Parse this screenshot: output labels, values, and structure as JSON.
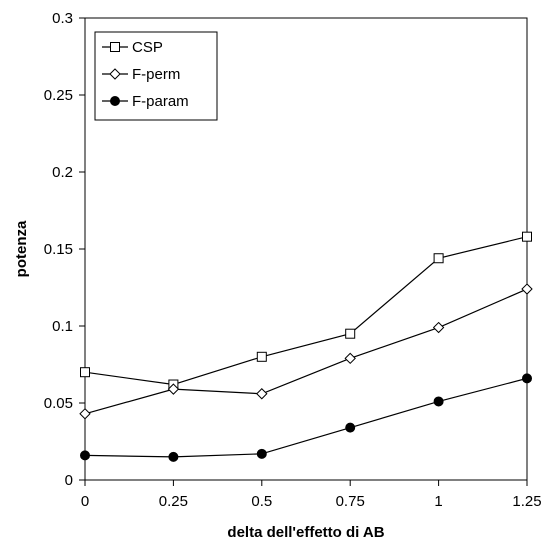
{
  "chart_data": {
    "type": "line",
    "x": [
      0,
      0.25,
      0.5,
      0.75,
      1,
      1.25
    ],
    "x_tick_labels": [
      "0",
      "0.25",
      "0.5",
      "0.75",
      "1",
      "1.25"
    ],
    "y_tick_labels": [
      "0",
      "0.05",
      "0.1",
      "0.15",
      "0.2",
      "0.25",
      "0.3"
    ],
    "xlim": [
      0,
      1.25
    ],
    "ylim": [
      0,
      0.3
    ],
    "xlabel": "delta dell'effetto di AB",
    "ylabel": "potenza",
    "title": "",
    "grid": false,
    "legend_position": "top-left",
    "series": [
      {
        "name": "CSP",
        "marker": "square-open",
        "color": "#000000",
        "values": [
          0.07,
          0.062,
          0.08,
          0.095,
          0.144,
          0.158
        ]
      },
      {
        "name": "F-perm",
        "marker": "diamond-open",
        "color": "#000000",
        "values": [
          0.043,
          0.059,
          0.056,
          0.079,
          0.099,
          0.124
        ]
      },
      {
        "name": "F-param",
        "marker": "circle-filled",
        "color": "#000000",
        "values": [
          0.016,
          0.015,
          0.017,
          0.034,
          0.051,
          0.066
        ]
      }
    ]
  }
}
